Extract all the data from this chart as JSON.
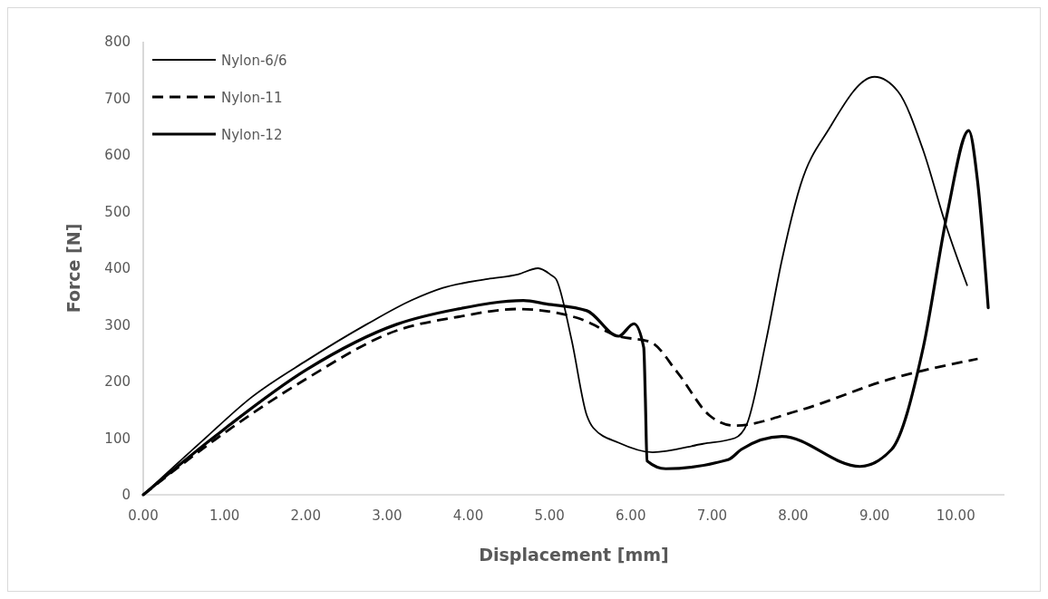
{
  "chart_data": {
    "type": "line",
    "xlabel": "Displacement [mm]",
    "ylabel": "Force [N]",
    "xlim": [
      0,
      10.6
    ],
    "xticks": [
      {
        "value": 0,
        "label": "0.00"
      },
      {
        "value": 1,
        "label": "1.00"
      },
      {
        "value": 2,
        "label": "2.00"
      },
      {
        "value": 3,
        "label": "3.00"
      },
      {
        "value": 4,
        "label": "4.00"
      },
      {
        "value": 5,
        "label": "5.00"
      },
      {
        "value": 6,
        "label": "6.00"
      },
      {
        "value": 7,
        "label": "7.00"
      },
      {
        "value": 8,
        "label": "8.00"
      },
      {
        "value": 9,
        "label": "9.00"
      },
      {
        "value": 10,
        "label": "10.00"
      }
    ],
    "ylim": [
      0,
      800
    ],
    "yticks": [
      0,
      100,
      200,
      300,
      400,
      500,
      600,
      700,
      800
    ],
    "grid": false,
    "legend": "top left",
    "marker": "none",
    "series": [
      {
        "name": "Nylon-6/6",
        "color": "#000000",
        "line_style": "solid",
        "x": [
          0,
          0.71,
          1.34,
          2.01,
          2.75,
          3.31,
          3.68,
          4.24,
          4.61,
          4.86,
          5.02,
          5.08,
          5.27,
          5.46,
          5.54,
          5.85,
          6.27,
          6.89,
          7.28,
          7.43,
          7.67,
          7.86,
          8.09,
          8.44,
          9.0,
          9.29,
          9.6,
          9.87,
          10.14
        ],
        "values": [
          0,
          93,
          173,
          237,
          301,
          344,
          365,
          381,
          389,
          400,
          388,
          381,
          275,
          140,
          118,
          92,
          75,
          90,
          100,
          125,
          275,
          414,
          547,
          646,
          738,
          712,
          608,
          480,
          370
        ]
      },
      {
        "name": "Nylon-11",
        "color": "#000000",
        "line_style": "dashed",
        "x": [
          0,
          0.89,
          2.01,
          3.12,
          3.87,
          4.61,
          5.35,
          5.85,
          6.24,
          6.58,
          6.97,
          7.28,
          8.05,
          9.21,
          10.27
        ],
        "values": [
          0,
          98,
          205,
          290,
          314,
          328,
          312,
          280,
          270,
          215,
          140,
          122,
          148,
          205,
          240
        ]
      },
      {
        "name": "Nylon-12",
        "color": "#000000",
        "line_style": "solid",
        "x": [
          0,
          0.89,
          2.01,
          3.12,
          3.87,
          4.68,
          4.96,
          5.46,
          5.85,
          6.04,
          6.16,
          6.18,
          6.2,
          6.43,
          7.2,
          7.36,
          7.86,
          8.82,
          9.21,
          9.6,
          9.9,
          10.16,
          10.27,
          10.4
        ],
        "values": [
          0,
          104,
          221,
          301,
          328,
          343,
          337,
          325,
          280,
          302,
          260,
          170,
          60,
          46,
          62,
          80,
          103,
          50,
          80,
          260,
          500,
          643,
          552,
          330
        ]
      }
    ]
  }
}
